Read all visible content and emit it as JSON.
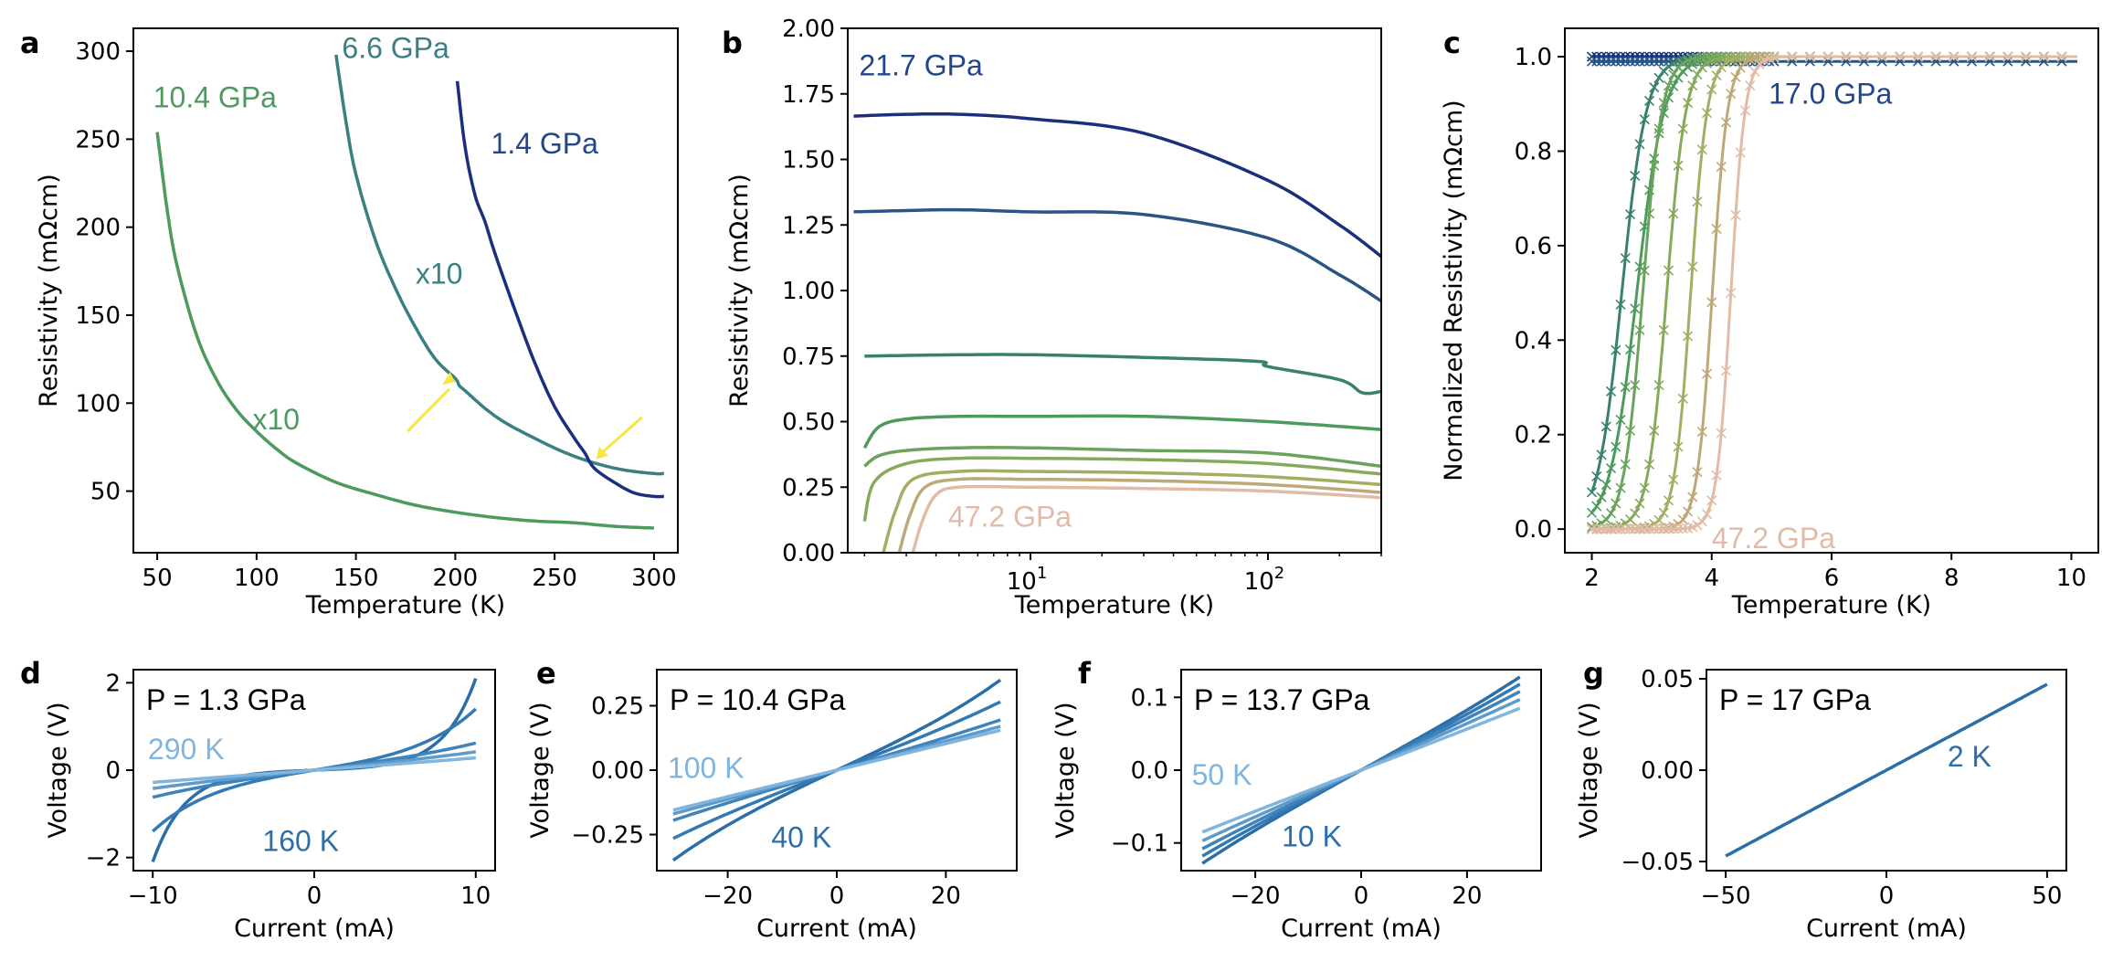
{
  "figure": {
    "colors": {
      "dark_navy": "#1b2f7e",
      "navy_blue": "#22468a",
      "teal": "#3a8083",
      "green": "#4c9a5e",
      "light_green": "#80ab5e",
      "olive": "#a6ad65",
      "tan": "#c6a884",
      "peach": "#e2bba7",
      "arrow_yellow": "#f5e642",
      "iv_dark": "#2b6ea8",
      "iv_mid": "#3f83bb",
      "iv_light": "#7fb5de"
    }
  },
  "chart_data": [
    {
      "panel": "a",
      "type": "line",
      "xlabel": "Temperature (K)",
      "ylabel": "Resistivity  (mΩcm)",
      "xlim": [
        38,
        312
      ],
      "ylim": [
        15,
        313
      ],
      "xticks": [
        50,
        100,
        150,
        200,
        250,
        300
      ],
      "yticks": [
        50,
        100,
        150,
        200,
        250,
        300
      ],
      "series": [
        {
          "name": "10.4 GPa",
          "color": "#4c9a5e",
          "x": [
            50,
            55,
            60,
            70,
            80,
            90,
            100,
            110,
            120,
            140,
            160,
            180,
            200,
            220,
            240,
            260,
            280,
            300
          ],
          "y": [
            254,
            210,
            178,
            138,
            113,
            96,
            84,
            74,
            66,
            55,
            48,
            42,
            38,
            35,
            33,
            32,
            30,
            29
          ]
        },
        {
          "name": "6.6 GPa",
          "color": "#3a8083",
          "x": [
            140,
            145,
            150,
            160,
            170,
            180,
            190,
            200,
            202,
            205,
            215,
            225,
            240,
            255,
            270,
            285,
            300,
            305
          ],
          "y": [
            298,
            260,
            230,
            192,
            165,
            143,
            125,
            114,
            110,
            107,
            97,
            89,
            80,
            72,
            66,
            62,
            60,
            60
          ]
        },
        {
          "name": "1.4 GPa",
          "color": "#1b2f7e",
          "x": [
            201,
            205,
            210,
            215,
            220,
            230,
            240,
            250,
            260,
            265,
            270,
            280,
            290,
            300,
            305
          ],
          "y": [
            283,
            245,
            218,
            203,
            185,
            153,
            123,
            98,
            80,
            72,
            63,
            55,
            49,
            47,
            47
          ]
        }
      ],
      "annotations": [
        {
          "text": "10.4 GPa",
          "x": 48,
          "y": 268,
          "color": "#4c9a5e"
        },
        {
          "text": "6.6 GPa",
          "x": 143,
          "y": 296,
          "color": "#3a8083"
        },
        {
          "text": "1.4 GPa",
          "x": 218,
          "y": 242,
          "color": "#22468a"
        },
        {
          "text": "x10",
          "x": 180,
          "y": 168,
          "color": "#3a8083"
        },
        {
          "text": "x10",
          "x": 98,
          "y": 85,
          "color": "#4c9a5e"
        }
      ]
    },
    {
      "panel": "b",
      "type": "line",
      "xscale": "log",
      "xlabel": "Temperature (K)",
      "ylabel": "Resistivity  (mΩcm)",
      "xlim": [
        1.7,
        300
      ],
      "ylim": [
        0,
        2.0
      ],
      "xticks_text": [
        "10",
        "10"
      ],
      "xticks_exp": [
        "1",
        "2"
      ],
      "yticks": [
        "0.00",
        "0.25",
        "0.50",
        "0.75",
        "1.00",
        "1.25",
        "1.50",
        "1.75",
        "2.00"
      ],
      "series": [
        {
          "name": "21.7 GPa",
          "color": "#1b2f7e",
          "x": [
            1.8,
            3,
            5,
            10,
            30,
            100,
            200,
            300
          ],
          "y": [
            1.665,
            1.672,
            1.672,
            1.655,
            1.6,
            1.42,
            1.25,
            1.13
          ]
        },
        {
          "name": "s2",
          "color": "#2a5486",
          "x": [
            1.8,
            3,
            5,
            10,
            30,
            100,
            200,
            300
          ],
          "y": [
            1.3,
            1.305,
            1.308,
            1.3,
            1.29,
            1.2,
            1.06,
            0.96
          ]
        },
        {
          "name": "s3",
          "color": "#3a8070",
          "x": [
            2,
            5,
            10,
            30,
            90,
            100,
            200,
            250,
            300
          ],
          "y": [
            0.75,
            0.755,
            0.755,
            0.745,
            0.73,
            0.71,
            0.66,
            0.61,
            0.615
          ]
        },
        {
          "name": "s4",
          "color": "#4c9a5e",
          "x": [
            2,
            2.3,
            3,
            5,
            10,
            30,
            100,
            300
          ],
          "y": [
            0.4,
            0.48,
            0.51,
            0.52,
            0.52,
            0.52,
            0.5,
            0.47
          ]
        },
        {
          "name": "s5",
          "color": "#6aa35c",
          "x": [
            2,
            2.3,
            3,
            5,
            10,
            30,
            100,
            300
          ],
          "y": [
            0.33,
            0.37,
            0.39,
            0.4,
            0.4,
            0.39,
            0.38,
            0.33
          ]
        },
        {
          "name": "s6",
          "color": "#86aa5c",
          "x": [
            2,
            2.2,
            3,
            5,
            10,
            30,
            100,
            300
          ],
          "y": [
            0.12,
            0.27,
            0.34,
            0.36,
            0.36,
            0.355,
            0.34,
            0.3
          ]
        },
        {
          "name": "s7",
          "color": "#a5ad64",
          "x": [
            2.4,
            2.7,
            3.2,
            5,
            10,
            30,
            100,
            300
          ],
          "y": [
            0.0,
            0.16,
            0.28,
            0.31,
            0.31,
            0.305,
            0.29,
            0.26
          ]
        },
        {
          "name": "s8",
          "color": "#bda977",
          "x": [
            2.8,
            3.1,
            3.6,
            5,
            10,
            30,
            100,
            300
          ],
          "y": [
            0.0,
            0.14,
            0.25,
            0.28,
            0.28,
            0.275,
            0.26,
            0.23
          ]
        },
        {
          "name": "47.2 GPa",
          "color": "#e2bba7",
          "x": [
            3.2,
            3.5,
            4.0,
            5,
            10,
            30,
            100,
            300
          ],
          "y": [
            0.0,
            0.12,
            0.22,
            0.25,
            0.25,
            0.245,
            0.235,
            0.21
          ]
        }
      ],
      "annotations": [
        {
          "text": "21.7 GPa",
          "x": 1.9,
          "y": 1.82,
          "color": "#22468a"
        },
        {
          "text": "47.2 GPa",
          "x": 4.5,
          "y": 0.1,
          "color": "#e2bba7"
        }
      ]
    },
    {
      "panel": "c",
      "type": "line",
      "xlabel": "Temperature (K)",
      "ylabel": "Normalized Resistivity  (mΩcm)",
      "xlim": [
        1.55,
        10.45
      ],
      "ylim": [
        -0.05,
        1.06
      ],
      "xticks": [
        2,
        4,
        6,
        8,
        10
      ],
      "yticks": [
        "0.0",
        "0.2",
        "0.4",
        "0.6",
        "0.8",
        "1.0"
      ],
      "marker": "x",
      "series": [
        {
          "name": "17.0 GPa",
          "color": "#1b2f7e",
          "tc": null,
          "width": 0.3,
          "min": 1.0
        },
        {
          "name": "s2",
          "color": "#2a5486",
          "tc": null,
          "width": 0.3,
          "min": 0.99
        },
        {
          "name": "s3",
          "color": "#3a8070",
          "tc": 1.6,
          "width": 0.45,
          "min": 0.0
        },
        {
          "name": "s4",
          "color": "#4c9a5e",
          "tc": 1.75,
          "width": 0.5,
          "min": 0.0
        },
        {
          "name": "s5",
          "color": "#6aa35c",
          "tc": 2.15,
          "width": 0.35,
          "min": 0.0
        },
        {
          "name": "s6",
          "color": "#86aa5c",
          "tc": 2.55,
          "width": 0.35,
          "min": 0.0
        },
        {
          "name": "s7",
          "color": "#a5ad64",
          "tc": 3.05,
          "width": 0.3,
          "min": 0.0
        },
        {
          "name": "s8",
          "color": "#bda977",
          "tc": 3.45,
          "width": 0.28,
          "min": 0.0
        },
        {
          "name": "47.2 GPa",
          "color": "#e2bba7",
          "tc": 3.8,
          "width": 0.26,
          "min": 0.0
        }
      ],
      "annotations": [
        {
          "text": "17.0 GPa",
          "x": 4.95,
          "y": 0.9,
          "color": "#22468a"
        },
        {
          "text": "47.2 GPa",
          "x": 4.0,
          "y": -0.04,
          "color": "#e2bba7"
        }
      ]
    },
    {
      "panel": "d",
      "type": "line",
      "xlabel": "Current (mA)",
      "ylabel": "Voltage (V)",
      "xlim": [
        -11.2,
        11.2
      ],
      "ylim": [
        -2.3,
        2.3
      ],
      "xticks": [
        -10,
        0,
        10
      ],
      "yticks": [
        -2,
        0,
        2
      ],
      "xticks_text": [
        "−10",
        "0",
        "10"
      ],
      "yticks_text": [
        "−2",
        "0",
        "2"
      ],
      "pressure_label": "P = 1.3 GPa",
      "series": [
        {
          "name": "160 K",
          "color": "#2b6ea8",
          "a": 2.1,
          "k": 2.5
        },
        {
          "name": "s2",
          "color": "#3379b3",
          "a": 1.4,
          "k": 1.2
        },
        {
          "name": "s3",
          "color": "#3f83bb",
          "a": 0.62,
          "k": 0.6
        },
        {
          "name": "s4",
          "color": "#5e9bcb",
          "a": 0.42,
          "k": 0.4
        },
        {
          "name": "290 K",
          "color": "#7fb5de",
          "a": 0.28,
          "k": 0.2
        }
      ],
      "annotations": [
        {
          "text": "290 K",
          "x": -10.3,
          "y": 0.25,
          "color": "#7fb5de"
        },
        {
          "text": "160 K",
          "x": -3.2,
          "y": -1.85,
          "color": "#2b6ea8"
        }
      ]
    },
    {
      "panel": "e",
      "type": "line",
      "xlabel": "Current (mA)",
      "ylabel": "Voltage (V)",
      "xlim": [
        -33,
        33
      ],
      "ylim": [
        -0.39,
        0.39
      ],
      "xticks": [
        -20,
        0,
        20
      ],
      "yticks": [
        -0.25,
        0,
        0.25
      ],
      "xticks_text": [
        "−20",
        "0",
        "20"
      ],
      "yticks_text": [
        "−0.25",
        "0.00",
        "0.25"
      ],
      "pressure_label": "P = 10.4 GPa",
      "series": [
        {
          "name": "40 K",
          "color": "#2b6ea8",
          "a": 0.35,
          "k": 0.5
        },
        {
          "name": "s2",
          "color": "#3379b3",
          "a": 0.265,
          "k": 0.35
        },
        {
          "name": "s3",
          "color": "#3f83bb",
          "a": 0.195,
          "k": 0.25
        },
        {
          "name": "s4",
          "color": "#5e9bcb",
          "a": 0.17,
          "k": 0.15
        },
        {
          "name": "100 K",
          "color": "#7fb5de",
          "a": 0.155,
          "k": 0.1
        }
      ],
      "annotations": [
        {
          "text": "100 K",
          "x": -31,
          "y": -0.03,
          "color": "#7fb5de"
        },
        {
          "text": "40 K",
          "x": -12,
          "y": -0.3,
          "color": "#2b6ea8"
        }
      ]
    },
    {
      "panel": "f",
      "type": "line",
      "xlabel": "Current (mA)",
      "ylabel": "Voltage (V)",
      "xlim": [
        -34,
        34
      ],
      "ylim": [
        -0.138,
        0.138
      ],
      "xticks": [
        -20,
        0,
        20
      ],
      "yticks": [
        -0.1,
        0,
        0.1
      ],
      "xticks_text": [
        "−20",
        "0",
        "20"
      ],
      "yticks_text": [
        "−0.1",
        "0.0",
        "0.1"
      ],
      "pressure_label": "P = 13.7 GPa",
      "series": [
        {
          "name": "10 K",
          "color": "#2b6ea8",
          "a": 0.128,
          "k": 0.3
        },
        {
          "name": "s2",
          "color": "#3379b3",
          "a": 0.118,
          "k": 0.25
        },
        {
          "name": "s3",
          "color": "#3f83bb",
          "a": 0.108,
          "k": 0.2
        },
        {
          "name": "s4",
          "color": "#5e9bcb",
          "a": 0.097,
          "k": 0.15
        },
        {
          "name": "50 K",
          "color": "#7fb5de",
          "a": 0.085,
          "k": 0.1
        }
      ],
      "annotations": [
        {
          "text": "50 K",
          "x": -32,
          "y": -0.02,
          "color": "#7fb5de"
        },
        {
          "text": "10 K",
          "x": -15,
          "y": -0.105,
          "color": "#2b6ea8"
        }
      ]
    },
    {
      "panel": "g",
      "type": "line",
      "xlabel": "Current (mA)",
      "ylabel": "Voltage (V)",
      "xlim": [
        -56,
        56
      ],
      "ylim": [
        -0.055,
        0.055
      ],
      "xticks": [
        -50,
        0,
        50
      ],
      "yticks": [
        -0.05,
        0,
        0.05
      ],
      "xticks_text": [
        "−50",
        "0",
        "50"
      ],
      "yticks_text": [
        "−0.05",
        "0.00",
        "0.05"
      ],
      "pressure_label": "P = 17 GPa",
      "series": [
        {
          "name": "2 K",
          "color": "#2b6ea8",
          "a": 0.047,
          "k": 0
        }
      ],
      "annotations": [
        {
          "text": "2 K",
          "x": 19,
          "y": 0.002,
          "color": "#2b6ea8"
        }
      ]
    }
  ]
}
